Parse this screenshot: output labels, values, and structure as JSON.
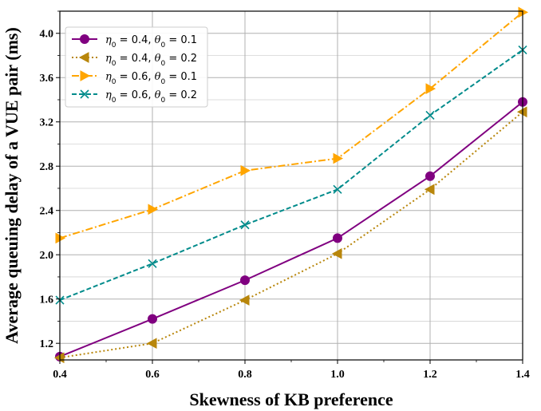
{
  "chart_data": {
    "type": "line",
    "title": "",
    "xlabel": "Skewness of KB preference",
    "ylabel": "Average queuing delay of a VUE pair (ms)",
    "xlim": [
      0.4,
      1.4
    ],
    "ylim": [
      1.05,
      4.2
    ],
    "x_ticks": [
      "0.4",
      "0.6",
      "0.8",
      "1.0",
      "1.2",
      "1.4"
    ],
    "y_ticks": [
      "1.2",
      "1.6",
      "2.0",
      "2.4",
      "2.8",
      "3.2",
      "3.6",
      "4.0"
    ],
    "grid": true,
    "legend_position": "top-left",
    "x": [
      0.4,
      0.6,
      0.8,
      1.0,
      1.2,
      1.4
    ],
    "series": [
      {
        "name": "η0 = 0.4, θ0 = 0.1",
        "legend": {
          "eta": "0.4",
          "theta": "0.1"
        },
        "values": [
          1.08,
          1.42,
          1.77,
          2.15,
          2.71,
          3.38
        ],
        "color": "#800080",
        "marker": "circle",
        "linestyle": "solid"
      },
      {
        "name": "η0 = 0.4, θ0 = 0.2",
        "legend": {
          "eta": "0.4",
          "theta": "0.2"
        },
        "values": [
          1.07,
          1.2,
          1.59,
          2.01,
          2.59,
          3.29
        ],
        "color": "#b8860b",
        "marker": "triangle-left",
        "linestyle": "dotted"
      },
      {
        "name": "η0 = 0.6, θ0 = 0.1",
        "legend": {
          "eta": "0.6",
          "theta": "0.1"
        },
        "values": [
          2.15,
          2.41,
          2.76,
          2.87,
          3.5,
          4.19
        ],
        "color": "#ffa500",
        "marker": "triangle-right",
        "linestyle": "dashdot"
      },
      {
        "name": "η0 = 0.6, θ0 = 0.2",
        "legend": {
          "eta": "0.6",
          "theta": "0.2"
        },
        "values": [
          1.59,
          1.92,
          2.27,
          2.59,
          3.26,
          3.85
        ],
        "color": "#008b8b",
        "marker": "x",
        "linestyle": "dashed"
      }
    ]
  }
}
